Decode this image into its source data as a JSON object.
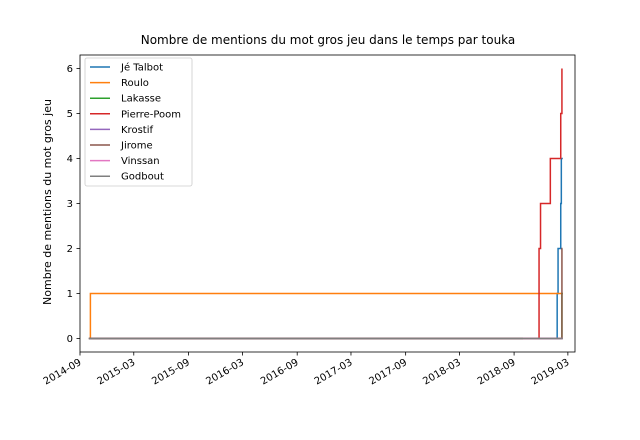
{
  "chart_data": {
    "type": "line",
    "title": "Nombre de mentions du mot gros jeu dans le temps par touka",
    "xlabel": "",
    "ylabel": "Nombre de mentions du mot gros jeu",
    "xlim": [
      "2014-09-01",
      "2019-03-25"
    ],
    "ylim": [
      -0.3,
      6.3
    ],
    "x_ticks": [
      "2014-09",
      "2015-03",
      "2015-09",
      "2016-03",
      "2016-09",
      "2017-03",
      "2017-09",
      "2018-03",
      "2018-09",
      "2019-03"
    ],
    "y_ticks": [
      0,
      1,
      2,
      3,
      4,
      5,
      6
    ],
    "legend_position": "upper-left",
    "step": "post",
    "series": [
      {
        "name": "Jé Talbot",
        "color": "#1f77b4",
        "points": [
          [
            "2014-10-01",
            0
          ],
          [
            "2019-01-20",
            0
          ],
          [
            "2019-01-24",
            1
          ],
          [
            "2019-01-27",
            2
          ],
          [
            "2019-02-05",
            3
          ],
          [
            "2019-02-07",
            4
          ],
          [
            "2019-02-12",
            4
          ]
        ]
      },
      {
        "name": "Roulo",
        "color": "#ff7f0e",
        "points": [
          [
            "2014-10-01",
            0
          ],
          [
            "2014-10-06",
            1
          ],
          [
            "2019-02-12",
            1
          ]
        ]
      },
      {
        "name": "Lakasse",
        "color": "#2ca02c",
        "points": [
          [
            "2014-10-01",
            0
          ],
          [
            "2019-02-08",
            0
          ],
          [
            "2019-02-09",
            1
          ],
          [
            "2019-02-12",
            1
          ]
        ]
      },
      {
        "name": "Pierre-Poom",
        "color": "#d62728",
        "points": [
          [
            "2014-10-01",
            0
          ],
          [
            "2018-11-20",
            0
          ],
          [
            "2018-11-24",
            2
          ],
          [
            "2018-11-29",
            3
          ],
          [
            "2019-01-01",
            4
          ],
          [
            "2019-02-05",
            5
          ],
          [
            "2019-02-09",
            6
          ]
        ]
      },
      {
        "name": "Krostif",
        "color": "#9467bd",
        "points": [
          [
            "2014-10-01",
            0
          ],
          [
            "2019-02-12",
            0
          ]
        ]
      },
      {
        "name": "Jirome",
        "color": "#8c564b",
        "points": [
          [
            "2014-10-01",
            0
          ],
          [
            "2019-02-06",
            0
          ],
          [
            "2019-02-09",
            2
          ],
          [
            "2019-02-11",
            2
          ]
        ]
      },
      {
        "name": "Vinssan",
        "color": "#e377c2",
        "points": [
          [
            "2018-10-01",
            0
          ],
          [
            "2019-02-11",
            0
          ]
        ]
      },
      {
        "name": "Godbout",
        "color": "#7f7f7f",
        "points": [
          [
            "2014-10-01",
            0
          ],
          [
            "2019-02-11",
            0
          ]
        ]
      }
    ]
  }
}
